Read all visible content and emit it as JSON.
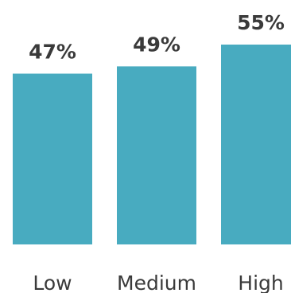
{
  "chart_data": {
    "type": "bar",
    "categories": [
      "Low",
      "Medium",
      "High"
    ],
    "values": [
      47,
      49,
      55
    ],
    "data_labels": [
      "47%",
      "49%",
      "55%"
    ],
    "ylim": [
      0,
      55
    ],
    "grid": false,
    "bar_color": "#48abc0"
  }
}
